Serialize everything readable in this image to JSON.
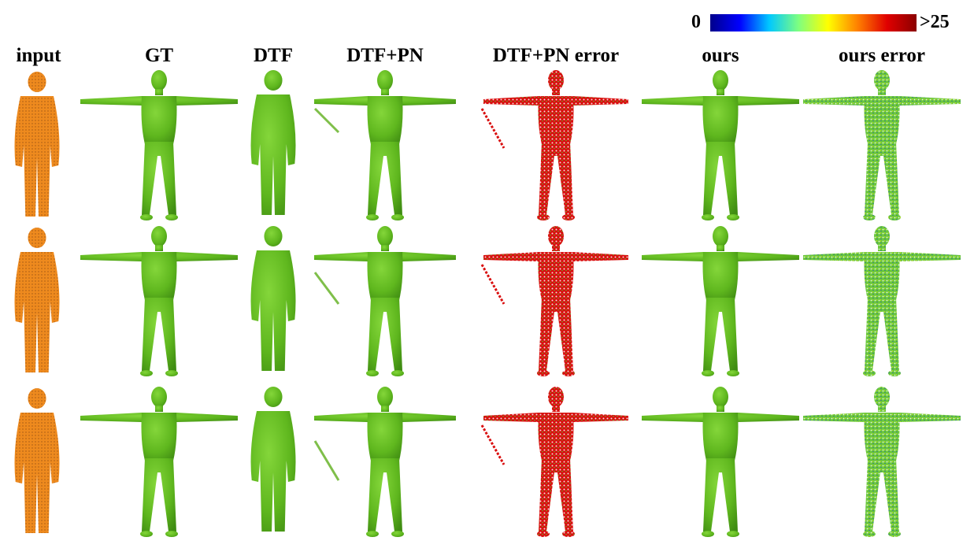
{
  "color_scale": {
    "min_label": "0",
    "max_label": ">25",
    "stops": [
      "#00008b",
      "#0000ff",
      "#00c8ff",
      "#7fff7f",
      "#ffff00",
      "#ff8000",
      "#e00000",
      "#8b0000"
    ]
  },
  "columns": [
    {
      "key": "input",
      "label": "input"
    },
    {
      "key": "gt",
      "label": "GT"
    },
    {
      "key": "dtf",
      "label": "DTF"
    },
    {
      "key": "dtfpn",
      "label": "DTF+PN"
    },
    {
      "key": "dtfpn_err",
      "label": "DTF+PN error"
    },
    {
      "key": "ours",
      "label": "ours"
    },
    {
      "key": "ours_err",
      "label": "ours error"
    }
  ],
  "rows": 3,
  "colors": {
    "mesh": "#5fb71e",
    "mesh_dark": "#3f8c12",
    "mesh_light": "#84d63a",
    "input": "#ee8a1e",
    "input_dark": "#5a2a08"
  }
}
